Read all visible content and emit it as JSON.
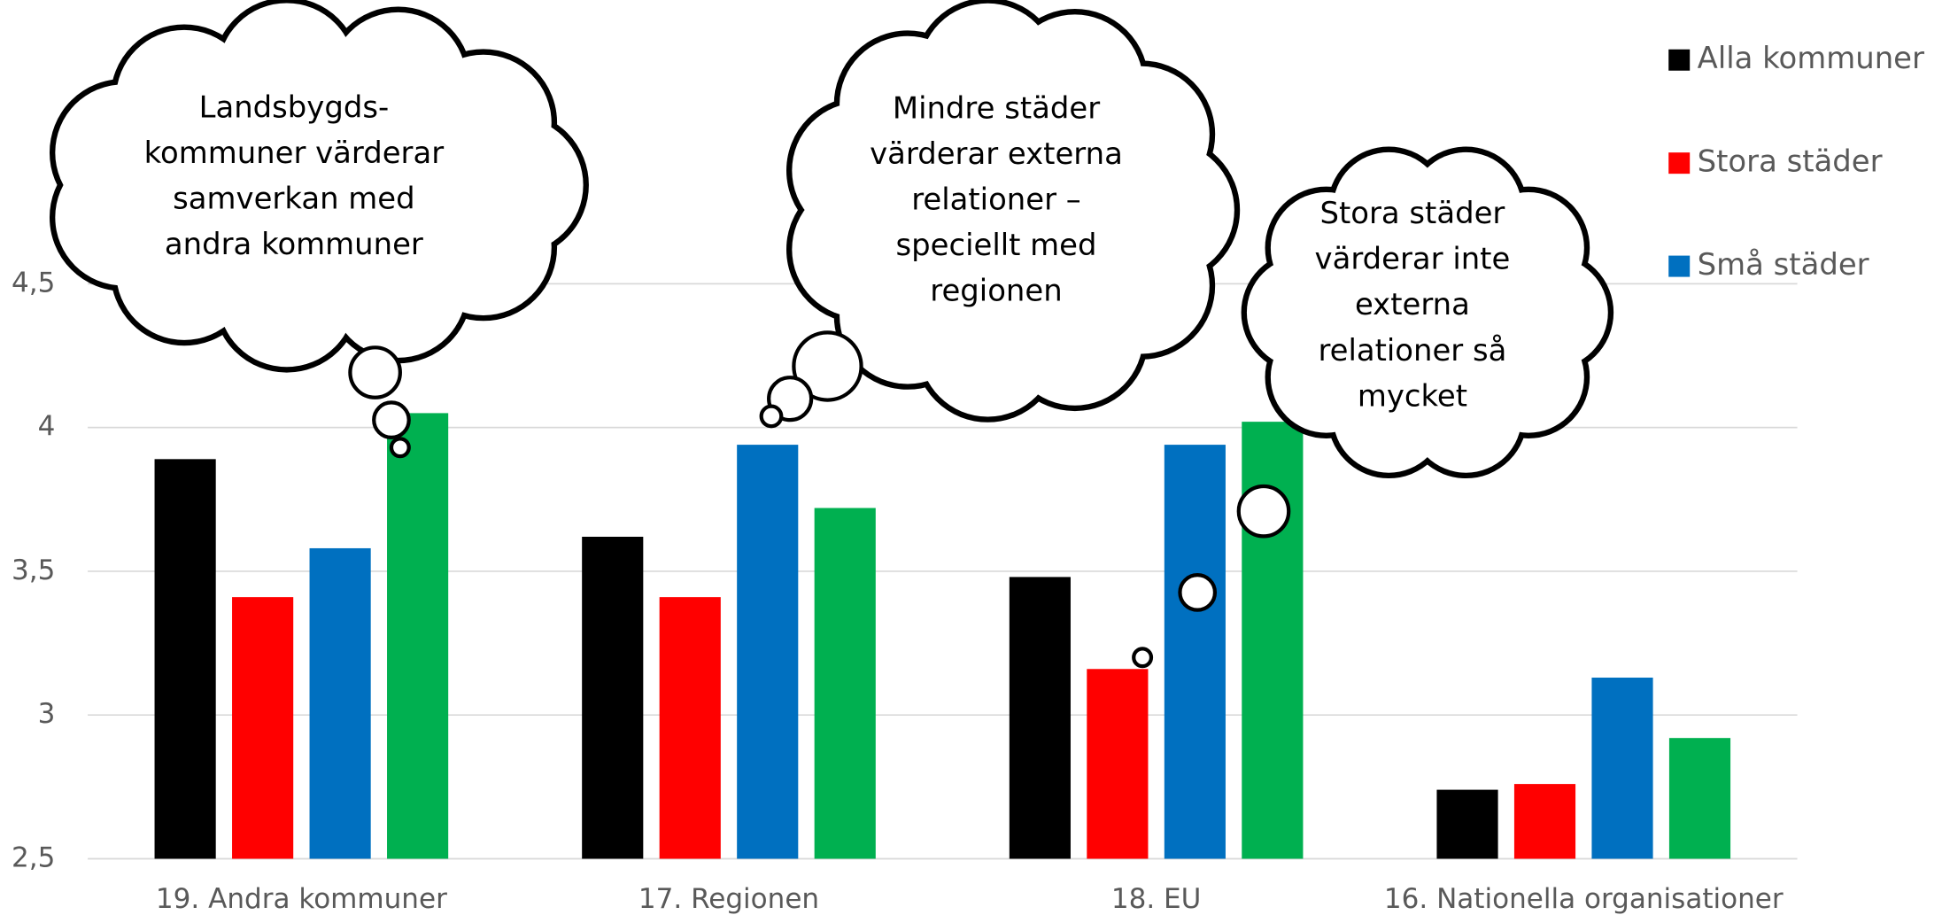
{
  "chart_data": {
    "type": "bar",
    "categories": [
      "19. Andra kommuner",
      "17. Regionen",
      "18. EU",
      "16. Nationella organisationer"
    ],
    "series": [
      {
        "name": "Alla kommuner",
        "color": "#000000",
        "values": [
          3.89,
          3.62,
          3.48,
          2.74
        ]
      },
      {
        "name": "Stora städer",
        "color": "#ff0000",
        "values": [
          3.41,
          3.41,
          3.16,
          2.76
        ]
      },
      {
        "name": "Små städer",
        "color": "#0070c0",
        "values": [
          3.58,
          3.94,
          3.94,
          3.13
        ]
      },
      {
        "color": "#00b050",
        "values": [
          4.05,
          3.72,
          4.02,
          2.92
        ]
      }
    ],
    "ylim": [
      2.5,
      4.5
    ],
    "yticks": [
      {
        "value": 2.5,
        "label": "2,5"
      },
      3,
      {
        "value": 3.5,
        "label": "3,5"
      },
      4,
      {
        "value": 4.5,
        "label": "4,5"
      }
    ],
    "grid": true,
    "legend": "top-right",
    "annotations": [
      [
        "Landsbygds-",
        "kommuner värderar",
        "samverkan med",
        "andra kommuner"
      ],
      [
        "Mindre städer",
        "värderar externa",
        "relationer –",
        "speciellt med",
        "regionen"
      ],
      [
        "Stora städer",
        "värderar inte",
        "externa",
        "relationer så",
        "mycket"
      ]
    ]
  }
}
